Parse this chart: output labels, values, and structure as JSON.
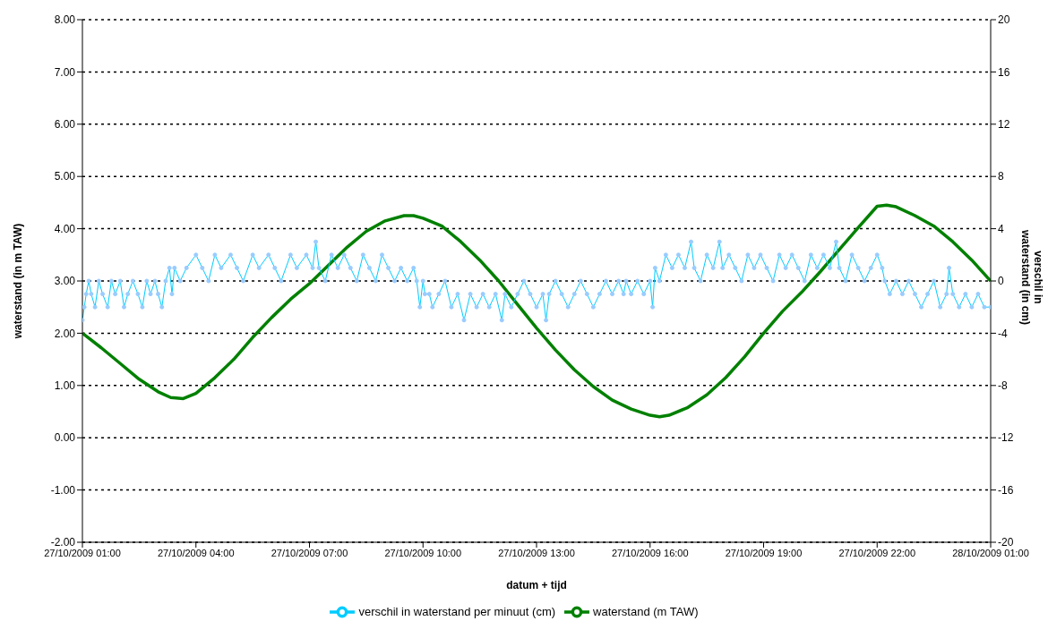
{
  "chart_data": {
    "type": "line",
    "xlabel": "datum + tijd",
    "ylabel": "waterstand   (in m TAW)",
    "y2label": "verschil in waterstand   (in cm)",
    "xlim": [
      "2009-10-27T01:00",
      "2009-10-28T01:00"
    ],
    "xticks": [
      {
        "value": "2009-10-27T01:00",
        "label": "27/10/2009 01:00"
      },
      {
        "value": "2009-10-27T04:00",
        "label": "27/10/2009 04:00"
      },
      {
        "value": "2009-10-27T07:00",
        "label": "27/10/2009 07:00"
      },
      {
        "value": "2009-10-27T10:00",
        "label": "27/10/2009 10:00"
      },
      {
        "value": "2009-10-27T13:00",
        "label": "27/10/2009 13:00"
      },
      {
        "value": "2009-10-27T16:00",
        "label": "27/10/2009 16:00"
      },
      {
        "value": "2009-10-27T19:00",
        "label": "27/10/2009 19:00"
      },
      {
        "value": "2009-10-27T22:00",
        "label": "27/10/2009 22:00"
      },
      {
        "value": "2009-10-28T01:00",
        "label": "28/10/2009 01:00"
      }
    ],
    "ylim": [
      -2,
      8
    ],
    "yticks": [
      {
        "value": -2,
        "label": "-2.00"
      },
      {
        "value": -1,
        "label": "-1.00"
      },
      {
        "value": 0,
        "label": "0.00"
      },
      {
        "value": 1,
        "label": "1.00"
      },
      {
        "value": 2,
        "label": "2.00"
      },
      {
        "value": 3,
        "label": "3.00"
      },
      {
        "value": 4,
        "label": "4.00"
      },
      {
        "value": 5,
        "label": "5.00"
      },
      {
        "value": 6,
        "label": "6.00"
      },
      {
        "value": 7,
        "label": "7.00"
      },
      {
        "value": 8,
        "label": "8.00"
      }
    ],
    "y2lim": [
      -20,
      20
    ],
    "y2ticks": [
      -20,
      -16,
      -12,
      -8,
      -4,
      0,
      4,
      8,
      12,
      16,
      20
    ],
    "grid": "y",
    "legend": "bottom",
    "series": [
      {
        "name": "waterstand   (m TAW)",
        "color": "#008000",
        "marker": "none",
        "x": [
          "2009-10-27T01:00",
          "2009-10-27T01:30",
          "2009-10-27T02:00",
          "2009-10-27T02:30",
          "2009-10-27T03:00",
          "2009-10-27T03:20",
          "2009-10-27T03:40",
          "2009-10-27T04:00",
          "2009-10-27T04:30",
          "2009-10-27T05:00",
          "2009-10-27T05:30",
          "2009-10-27T06:00",
          "2009-10-27T06:30",
          "2009-10-27T07:00",
          "2009-10-27T07:30",
          "2009-10-27T08:00",
          "2009-10-27T08:30",
          "2009-10-27T09:00",
          "2009-10-27T09:30",
          "2009-10-27T09:45",
          "2009-10-27T10:00",
          "2009-10-27T10:30",
          "2009-10-27T11:00",
          "2009-10-27T11:30",
          "2009-10-27T12:00",
          "2009-10-27T12:30",
          "2009-10-27T13:00",
          "2009-10-27T13:30",
          "2009-10-27T14:00",
          "2009-10-27T14:30",
          "2009-10-27T15:00",
          "2009-10-27T15:30",
          "2009-10-27T16:00",
          "2009-10-27T16:15",
          "2009-10-27T16:30",
          "2009-10-27T17:00",
          "2009-10-27T17:30",
          "2009-10-27T18:00",
          "2009-10-27T18:30",
          "2009-10-27T19:00",
          "2009-10-27T19:30",
          "2009-10-27T20:00",
          "2009-10-27T20:30",
          "2009-10-27T21:00",
          "2009-10-27T21:30",
          "2009-10-27T22:00",
          "2009-10-27T22:15",
          "2009-10-27T22:30",
          "2009-10-27T23:00",
          "2009-10-27T23:30",
          "2009-10-28T00:00",
          "2009-10-28T00:30",
          "2009-10-28T01:00"
        ],
        "values": [
          2.0,
          1.72,
          1.42,
          1.12,
          0.88,
          0.77,
          0.75,
          0.85,
          1.15,
          1.5,
          1.92,
          2.3,
          2.65,
          2.95,
          3.3,
          3.65,
          3.95,
          4.15,
          4.25,
          4.25,
          4.2,
          4.05,
          3.75,
          3.4,
          3.0,
          2.55,
          2.1,
          1.68,
          1.3,
          0.98,
          0.72,
          0.55,
          0.43,
          0.4,
          0.43,
          0.58,
          0.82,
          1.15,
          1.55,
          2.0,
          2.42,
          2.78,
          3.18,
          3.6,
          4.02,
          4.43,
          4.45,
          4.42,
          4.25,
          4.05,
          3.75,
          3.4,
          3.0
        ]
      },
      {
        "name": "verschil in waterstand per minuut   (cm)",
        "color": "#00ccff",
        "marker": "circle",
        "axis": "y2",
        "x": [
          "2009-10-27T01:00",
          "2009-10-27T01:03",
          "2009-10-27T01:06",
          "2009-10-27T01:10",
          "2009-10-27T01:14",
          "2009-10-27T01:20",
          "2009-10-27T01:26",
          "2009-10-27T01:32",
          "2009-10-27T01:40",
          "2009-10-27T01:46",
          "2009-10-27T01:52",
          "2009-10-27T02:00",
          "2009-10-27T02:06",
          "2009-10-27T02:12",
          "2009-10-27T02:20",
          "2009-10-27T02:28",
          "2009-10-27T02:35",
          "2009-10-27T02:42",
          "2009-10-27T02:48",
          "2009-10-27T02:55",
          "2009-10-27T03:00",
          "2009-10-27T03:06",
          "2009-10-27T03:12",
          "2009-10-27T03:18",
          "2009-10-27T03:22",
          "2009-10-27T03:26",
          "2009-10-27T03:35",
          "2009-10-27T03:45",
          "2009-10-27T04:00",
          "2009-10-27T04:10",
          "2009-10-27T04:20",
          "2009-10-27T04:30",
          "2009-10-27T04:40",
          "2009-10-27T04:55",
          "2009-10-27T05:05",
          "2009-10-27T05:15",
          "2009-10-27T05:30",
          "2009-10-27T05:40",
          "2009-10-27T05:55",
          "2009-10-27T06:05",
          "2009-10-27T06:15",
          "2009-10-27T06:30",
          "2009-10-27T06:40",
          "2009-10-27T06:55",
          "2009-10-27T07:05",
          "2009-10-27T07:10",
          "2009-10-27T07:15",
          "2009-10-27T07:25",
          "2009-10-27T07:35",
          "2009-10-27T07:45",
          "2009-10-27T07:55",
          "2009-10-27T08:05",
          "2009-10-27T08:15",
          "2009-10-27T08:25",
          "2009-10-27T08:35",
          "2009-10-27T08:45",
          "2009-10-27T08:55",
          "2009-10-27T09:05",
          "2009-10-27T09:15",
          "2009-10-27T09:25",
          "2009-10-27T09:35",
          "2009-10-27T09:45",
          "2009-10-27T09:50",
          "2009-10-27T09:55",
          "2009-10-27T10:00",
          "2009-10-27T10:03",
          "2009-10-27T10:10",
          "2009-10-27T10:15",
          "2009-10-27T10:25",
          "2009-10-27T10:35",
          "2009-10-27T10:45",
          "2009-10-27T10:55",
          "2009-10-27T11:05",
          "2009-10-27T11:15",
          "2009-10-27T11:25",
          "2009-10-27T11:35",
          "2009-10-27T11:45",
          "2009-10-27T11:55",
          "2009-10-27T12:05",
          "2009-10-27T12:10",
          "2009-10-27T12:20",
          "2009-10-27T12:30",
          "2009-10-27T12:40",
          "2009-10-27T12:50",
          "2009-10-27T13:00",
          "2009-10-27T13:10",
          "2009-10-27T13:15",
          "2009-10-27T13:20",
          "2009-10-27T13:30",
          "2009-10-27T13:40",
          "2009-10-27T13:50",
          "2009-10-27T14:00",
          "2009-10-27T14:10",
          "2009-10-27T14:20",
          "2009-10-27T14:30",
          "2009-10-27T14:40",
          "2009-10-27T14:50",
          "2009-10-27T15:00",
          "2009-10-27T15:10",
          "2009-10-27T15:18",
          "2009-10-27T15:22",
          "2009-10-27T15:30",
          "2009-10-27T15:40",
          "2009-10-27T15:50",
          "2009-10-27T16:00",
          "2009-10-27T16:04",
          "2009-10-27T16:08",
          "2009-10-27T16:15",
          "2009-10-27T16:25",
          "2009-10-27T16:35",
          "2009-10-27T16:45",
          "2009-10-27T16:55",
          "2009-10-27T17:05",
          "2009-10-27T17:10",
          "2009-10-27T17:20",
          "2009-10-27T17:30",
          "2009-10-27T17:40",
          "2009-10-27T17:50",
          "2009-10-27T17:55",
          "2009-10-27T18:05",
          "2009-10-27T18:15",
          "2009-10-27T18:25",
          "2009-10-27T18:35",
          "2009-10-27T18:45",
          "2009-10-27T18:55",
          "2009-10-27T19:05",
          "2009-10-27T19:15",
          "2009-10-27T19:25",
          "2009-10-27T19:35",
          "2009-10-27T19:45",
          "2009-10-27T19:55",
          "2009-10-27T20:05",
          "2009-10-27T20:15",
          "2009-10-27T20:25",
          "2009-10-27T20:35",
          "2009-10-27T20:45",
          "2009-10-27T20:55",
          "2009-10-27T21:00",
          "2009-10-27T21:10",
          "2009-10-27T21:20",
          "2009-10-27T21:30",
          "2009-10-27T21:40",
          "2009-10-27T21:50",
          "2009-10-27T22:00",
          "2009-10-27T22:08",
          "2009-10-27T22:12",
          "2009-10-27T22:20",
          "2009-10-27T22:30",
          "2009-10-27T22:40",
          "2009-10-27T22:50",
          "2009-10-27T23:00",
          "2009-10-27T23:10",
          "2009-10-27T23:20",
          "2009-10-27T23:30",
          "2009-10-27T23:40",
          "2009-10-27T23:50",
          "2009-10-27T23:54",
          "2009-10-28T00:00",
          "2009-10-28T00:10",
          "2009-10-28T00:20",
          "2009-10-28T00:30",
          "2009-10-28T00:40",
          "2009-10-28T00:50",
          "2009-10-28T01:00"
        ],
        "values": [
          -3,
          -2,
          -1,
          0,
          -1,
          -2,
          0,
          -1,
          -2,
          0,
          -1,
          0,
          -2,
          -1,
          0,
          -1,
          -2,
          0,
          -1,
          0,
          -1,
          -2,
          0,
          1,
          -1,
          1,
          0,
          1,
          2,
          1,
          0,
          2,
          1,
          2,
          1,
          0,
          2,
          1,
          2,
          1,
          0,
          2,
          1,
          2,
          1,
          3,
          1,
          0,
          2,
          1,
          2,
          1,
          0,
          2,
          1,
          0,
          2,
          1,
          0,
          1,
          0,
          1,
          0,
          -2,
          0,
          -1,
          -1,
          -2,
          -1,
          0,
          -2,
          -1,
          -3,
          -1,
          -2,
          -1,
          -2,
          -1,
          -3,
          -1,
          -2,
          -1,
          0,
          -1,
          -2,
          -1,
          -3,
          -1,
          0,
          -1,
          -2,
          -1,
          0,
          -1,
          -2,
          -1,
          0,
          -1,
          0,
          -1,
          0,
          -1,
          0,
          -1,
          0,
          -2,
          1,
          0,
          2,
          1,
          2,
          1,
          3,
          1,
          0,
          2,
          1,
          3,
          1,
          2,
          1,
          0,
          2,
          1,
          2,
          1,
          0,
          2,
          1,
          2,
          1,
          0,
          2,
          1,
          2,
          1,
          3,
          1,
          0,
          2,
          1,
          0,
          1,
          2,
          1,
          0,
          -1,
          0,
          -1,
          0,
          -1,
          -2,
          -1,
          0,
          -2,
          -1,
          1,
          -1,
          -2,
          -1,
          -2,
          -1,
          -2,
          -2
        ]
      }
    ]
  }
}
